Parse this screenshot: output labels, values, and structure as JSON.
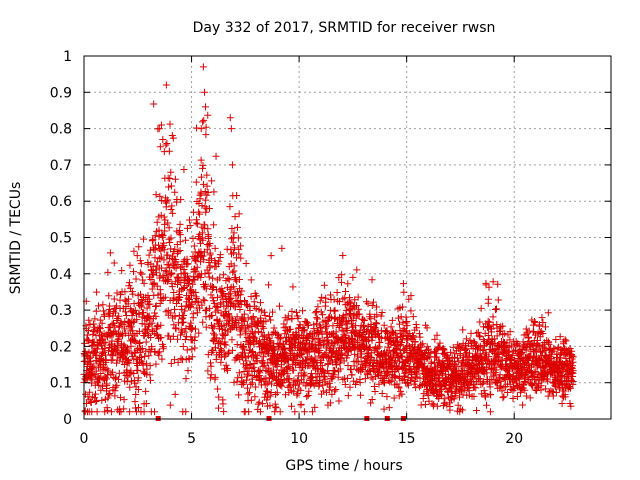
{
  "chart_data": {
    "type": "scatter",
    "title": "Day 332 of 2017, SRMTID for receiver rwsn",
    "xlabel": "GPS time / hours",
    "ylabel": "SRMTID / TECUs",
    "xlim": [
      0,
      24.5
    ],
    "ylim": [
      0,
      1
    ],
    "xticks": [
      0,
      5,
      10,
      15,
      20
    ],
    "xtick_labels": [
      "0",
      "5",
      "10",
      "15",
      "20"
    ],
    "yticks": [
      0,
      0.1,
      0.2,
      0.3,
      0.4,
      0.5,
      0.6,
      0.7,
      0.8,
      0.9,
      1
    ],
    "ytick_labels": [
      "0",
      "0.1",
      "0.2",
      "0.3",
      "0.4",
      "0.5",
      "0.6",
      "0.7",
      "0.8",
      "0.9",
      "1"
    ],
    "grid": true,
    "marker": "+",
    "color": "#dd0000",
    "series_name": "SRMTID",
    "seed": 332,
    "time_range_hours": [
      0,
      22.75
    ],
    "sample_spacing_hours": 0.0125,
    "points_per_epoch": 2,
    "envelope": [
      [
        0.0,
        0.15,
        0.07
      ],
      [
        1.0,
        0.17,
        0.08
      ],
      [
        2.0,
        0.21,
        0.09
      ],
      [
        3.0,
        0.25,
        0.1
      ],
      [
        3.5,
        0.42,
        0.15
      ],
      [
        4.0,
        0.48,
        0.16
      ],
      [
        4.5,
        0.36,
        0.12
      ],
      [
        5.0,
        0.3,
        0.1
      ],
      [
        5.5,
        0.55,
        0.18
      ],
      [
        6.0,
        0.3,
        0.12
      ],
      [
        6.5,
        0.22,
        0.09
      ],
      [
        7.0,
        0.4,
        0.15
      ],
      [
        7.5,
        0.18,
        0.08
      ],
      [
        8.0,
        0.21,
        0.08
      ],
      [
        9.0,
        0.16,
        0.06
      ],
      [
        10.0,
        0.17,
        0.06
      ],
      [
        11.0,
        0.18,
        0.07
      ],
      [
        12.0,
        0.22,
        0.07
      ],
      [
        13.0,
        0.2,
        0.06
      ],
      [
        14.0,
        0.16,
        0.05
      ],
      [
        15.0,
        0.19,
        0.06
      ],
      [
        16.0,
        0.12,
        0.04
      ],
      [
        17.0,
        0.11,
        0.04
      ],
      [
        18.0,
        0.13,
        0.05
      ],
      [
        19.0,
        0.18,
        0.06
      ],
      [
        20.0,
        0.14,
        0.04
      ],
      [
        21.0,
        0.17,
        0.05
      ],
      [
        22.0,
        0.13,
        0.04
      ],
      [
        22.75,
        0.15,
        0.05
      ]
    ],
    "spikes": [
      {
        "x": 3.5,
        "y": 0.8
      },
      {
        "x": 3.55,
        "y": 0.75
      },
      {
        "x": 3.6,
        "y": 0.81
      },
      {
        "x": 5.45,
        "y": 0.8
      },
      {
        "x": 5.55,
        "y": 0.97
      },
      {
        "x": 5.6,
        "y": 0.9
      },
      {
        "x": 5.65,
        "y": 0.86
      },
      {
        "x": 6.8,
        "y": 0.83
      },
      {
        "x": 6.85,
        "y": 0.8
      },
      {
        "x": 6.9,
        "y": 0.7
      },
      {
        "x": 8.7,
        "y": 0.45
      },
      {
        "x": 9.2,
        "y": 0.47
      },
      {
        "x": 12.5,
        "y": 0.39
      },
      {
        "x": 15.2,
        "y": 0.34
      },
      {
        "x": 18.8,
        "y": 0.33
      }
    ],
    "gap_markers_x": [
      3.45,
      8.6,
      13.15,
      14.1,
      14.85
    ]
  }
}
